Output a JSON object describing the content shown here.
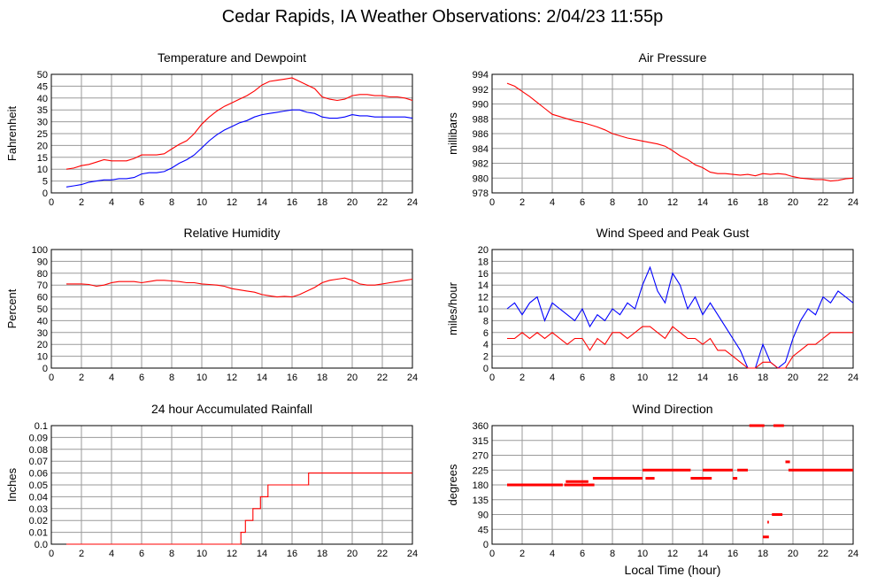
{
  "page": {
    "title": "Cedar Rapids, IA Weather Observations: 2/04/23 11:55p"
  },
  "colors": {
    "red": "#ff0000",
    "blue": "#0000ff",
    "grid": "#9a9a9a",
    "axis": "#000000"
  },
  "chart_data": [
    {
      "id": "temp",
      "type": "line",
      "title": "Temperature and Dewpoint",
      "ylabel": "Fahrenheit",
      "xlabel": "",
      "xlim": [
        0,
        24
      ],
      "ylim": [
        0,
        50
      ],
      "xticks": [
        2,
        4,
        6,
        8,
        10,
        12,
        14,
        16,
        18,
        20,
        22,
        24
      ],
      "yticks": [
        0,
        5,
        10,
        15,
        20,
        25,
        30,
        35,
        40,
        45,
        50
      ],
      "ytick_labels": [
        "0",
        "5",
        "10",
        "15",
        "20",
        "25",
        "30",
        "35",
        "40",
        "45",
        "50"
      ],
      "grid": true,
      "series": [
        {
          "color": "#ff0000",
          "x": [
            1,
            1.5,
            2,
            2.5,
            3,
            3.5,
            4,
            4.5,
            5,
            5.5,
            6,
            6.5,
            7,
            7.5,
            8,
            8.5,
            9,
            9.5,
            10,
            10.5,
            11,
            11.5,
            12,
            12.5,
            13,
            13.5,
            14,
            14.5,
            15,
            15.5,
            16,
            16.5,
            17,
            17.5,
            18,
            18.5,
            19,
            19.5,
            20,
            20.5,
            21,
            21.5,
            22,
            22.5,
            23,
            23.5,
            24
          ],
          "y": [
            10,
            10.5,
            11.5,
            12,
            13,
            14,
            13.5,
            13.5,
            13.5,
            14.5,
            16,
            16,
            16,
            16.5,
            18.5,
            20.5,
            22,
            25,
            29,
            32,
            34.5,
            36.5,
            38,
            39.5,
            41,
            43,
            45.5,
            47,
            47.5,
            48,
            48.5,
            47,
            45.5,
            44,
            40.5,
            39.5,
            39,
            39.5,
            41,
            41.5,
            41.5,
            41,
            41,
            40.5,
            40.5,
            40,
            39
          ]
        },
        {
          "color": "#0000ff",
          "x": [
            1,
            1.5,
            2,
            2.5,
            3,
            3.5,
            4,
            4.5,
            5,
            5.5,
            6,
            6.5,
            7,
            7.5,
            8,
            8.5,
            9,
            9.5,
            10,
            10.5,
            11,
            11.5,
            12,
            12.5,
            13,
            13.5,
            14,
            14.5,
            15,
            15.5,
            16,
            16.5,
            17,
            17.5,
            18,
            18.5,
            19,
            19.5,
            20,
            20.5,
            21,
            21.5,
            22,
            22.5,
            23,
            23.5,
            24
          ],
          "y": [
            2.5,
            3,
            3.5,
            4.5,
            5,
            5.5,
            5.5,
            6,
            6,
            6.5,
            8,
            8.5,
            8.5,
            9,
            10.5,
            12.5,
            14,
            16,
            19,
            22,
            24.5,
            26.5,
            28,
            29.5,
            30.5,
            32,
            33,
            33.5,
            34,
            34.5,
            35,
            35,
            34,
            33.5,
            32,
            31.5,
            31.5,
            32,
            33,
            32.5,
            32.5,
            32,
            32,
            32,
            32,
            32,
            31.5
          ]
        }
      ]
    },
    {
      "id": "pressure",
      "type": "line",
      "title": "Air Pressure",
      "ylabel": "millibars",
      "xlabel": "",
      "xlim": [
        0,
        24
      ],
      "ylim": [
        978,
        994
      ],
      "xticks": [
        2,
        4,
        6,
        8,
        10,
        12,
        14,
        16,
        18,
        20,
        22,
        24
      ],
      "yticks": [
        978,
        980,
        982,
        984,
        986,
        988,
        990,
        992,
        994
      ],
      "ytick_labels": [
        "978",
        "980",
        "982",
        "984",
        "986",
        "988",
        "990",
        "992",
        "994"
      ],
      "grid": true,
      "series": [
        {
          "color": "#ff0000",
          "x": [
            1,
            1.5,
            2,
            2.5,
            3,
            3.5,
            4,
            4.5,
            5,
            5.5,
            6,
            6.5,
            7,
            7.5,
            8,
            8.5,
            9,
            9.5,
            10,
            10.5,
            11,
            11.5,
            12,
            12.5,
            13,
            13.5,
            14,
            14.5,
            15,
            15.5,
            16,
            16.5,
            17,
            17.5,
            18,
            18.5,
            19,
            19.5,
            20,
            20.5,
            21,
            21.5,
            22,
            22.5,
            23,
            23.5,
            24
          ],
          "y": [
            992.8,
            992.4,
            991.7,
            991,
            990.2,
            989.4,
            988.6,
            988.3,
            988,
            987.7,
            987.5,
            987.2,
            986.9,
            986.5,
            986,
            985.7,
            985.4,
            985.2,
            985,
            984.8,
            984.6,
            984.3,
            983.7,
            983,
            982.5,
            981.8,
            981.4,
            980.8,
            980.6,
            980.6,
            980.5,
            980.4,
            980.5,
            980.3,
            980.6,
            980.5,
            980.6,
            980.5,
            980.2,
            980,
            979.9,
            979.8,
            979.8,
            979.6,
            979.7,
            979.9,
            980
          ]
        }
      ]
    },
    {
      "id": "rh",
      "type": "line",
      "title": "Relative Humidity",
      "ylabel": "Percent",
      "xlabel": "",
      "xlim": [
        0,
        24
      ],
      "ylim": [
        0,
        100
      ],
      "xticks": [
        2,
        4,
        6,
        8,
        10,
        12,
        14,
        16,
        18,
        20,
        22,
        24
      ],
      "yticks": [
        0,
        10,
        20,
        30,
        40,
        50,
        60,
        70,
        80,
        90,
        100
      ],
      "ytick_labels": [
        "0",
        "10",
        "20",
        "30",
        "40",
        "50",
        "60",
        "70",
        "80",
        "90",
        "100"
      ],
      "grid": true,
      "series": [
        {
          "color": "#ff0000",
          "x": [
            1,
            1.5,
            2,
            2.5,
            3,
            3.5,
            4,
            4.5,
            5,
            5.5,
            6,
            6.5,
            7,
            7.5,
            8,
            8.5,
            9,
            9.5,
            10,
            10.5,
            11,
            11.5,
            12,
            12.5,
            13,
            13.5,
            14,
            14.5,
            15,
            15.5,
            16,
            16.5,
            17,
            17.5,
            18,
            18.5,
            19,
            19.5,
            20,
            20.5,
            21,
            21.5,
            22,
            22.5,
            23,
            23.5,
            24
          ],
          "y": [
            71,
            71,
            71,
            70.5,
            69,
            70,
            72,
            73,
            73,
            73,
            72,
            73,
            74,
            74,
            73.5,
            73,
            72,
            72,
            71,
            70.5,
            70,
            69,
            67,
            66,
            65,
            64,
            62,
            61,
            60,
            60.5,
            60,
            62,
            65,
            68,
            72,
            74,
            75,
            76,
            74,
            71,
            70,
            70,
            71,
            72,
            73,
            74,
            75
          ]
        }
      ]
    },
    {
      "id": "wind",
      "type": "line",
      "title": "Wind Speed and Peak Gust",
      "ylabel": "miles/hour",
      "xlabel": "",
      "xlim": [
        0,
        24
      ],
      "ylim": [
        0,
        20
      ],
      "xticks": [
        2,
        4,
        6,
        8,
        10,
        12,
        14,
        16,
        18,
        20,
        22,
        24
      ],
      "yticks": [
        0,
        2,
        4,
        6,
        8,
        10,
        12,
        14,
        16,
        18,
        20
      ],
      "ytick_labels": [
        "0",
        "2",
        "4",
        "6",
        "8",
        "10",
        "12",
        "14",
        "16",
        "18",
        "20"
      ],
      "grid": true,
      "series": [
        {
          "color": "#0000ff",
          "x": [
            1,
            1.5,
            2,
            2.5,
            3,
            3.5,
            4,
            4.5,
            5,
            5.5,
            6,
            6.5,
            7,
            7.5,
            8,
            8.5,
            9,
            9.5,
            10,
            10.5,
            11,
            11.5,
            12,
            12.5,
            13,
            13.5,
            14,
            14.5,
            15,
            15.5,
            16,
            16.5,
            17,
            17.5,
            18,
            18.5,
            19,
            19.5,
            20,
            20.5,
            21,
            21.5,
            22,
            22.5,
            23,
            23.5,
            24
          ],
          "y": [
            10,
            11,
            9,
            11,
            12,
            8,
            11,
            10,
            9,
            8,
            10,
            7,
            9,
            8,
            10,
            9,
            11,
            10,
            14,
            17,
            13,
            11,
            16,
            14,
            10,
            12,
            9,
            11,
            9,
            7,
            5,
            3,
            0,
            0,
            4,
            1,
            0,
            1,
            5,
            8,
            10,
            9,
            12,
            11,
            13,
            12,
            11
          ]
        },
        {
          "color": "#ff0000",
          "x": [
            1,
            1.5,
            2,
            2.5,
            3,
            3.5,
            4,
            4.5,
            5,
            5.5,
            6,
            6.5,
            7,
            7.5,
            8,
            8.5,
            9,
            9.5,
            10,
            10.5,
            11,
            11.5,
            12,
            12.5,
            13,
            13.5,
            14,
            14.5,
            15,
            15.5,
            16,
            16.5,
            17,
            17.5,
            18,
            18.5,
            19,
            19.5,
            20,
            20.5,
            21,
            21.5,
            22,
            22.5,
            23,
            23.5,
            24
          ],
          "y": [
            5,
            5,
            6,
            5,
            6,
            5,
            6,
            5,
            4,
            5,
            5,
            3,
            5,
            4,
            6,
            6,
            5,
            6,
            7,
            7,
            6,
            5,
            7,
            6,
            5,
            5,
            4,
            5,
            3,
            3,
            2,
            1,
            0,
            0,
            1,
            1,
            0,
            0,
            2,
            3,
            4,
            4,
            5,
            6,
            6,
            6,
            6
          ]
        }
      ]
    },
    {
      "id": "rain",
      "type": "line",
      "title": "24 hour Accumulated Rainfall",
      "ylabel": "Inches",
      "xlabel": "",
      "xlim": [
        0,
        24
      ],
      "ylim": [
        0,
        0.1
      ],
      "xticks": [
        2,
        4,
        6,
        8,
        10,
        12,
        14,
        16,
        18,
        20,
        22,
        24
      ],
      "yticks": [
        0,
        0.01,
        0.02,
        0.03,
        0.04,
        0.05,
        0.06,
        0.07,
        0.08,
        0.09,
        0.1
      ],
      "ytick_labels": [
        "0.0",
        "0.01",
        "0.02",
        "0.03",
        "0.04",
        "0.05",
        "0.06",
        "0.07",
        "0.08",
        "0.09",
        "0.1"
      ],
      "grid": true,
      "series": [
        {
          "color": "#ff0000",
          "x": [
            1,
            12.6,
            12.6,
            12.9,
            12.9,
            13.4,
            13.4,
            13.9,
            13.9,
            14.4,
            14.4,
            15.2,
            15.2,
            17.1,
            17.1,
            24
          ],
          "y": [
            0,
            0,
            0.01,
            0.01,
            0.02,
            0.02,
            0.03,
            0.03,
            0.04,
            0.04,
            0.05,
            0.05,
            0.05,
            0.05,
            0.06,
            0.06
          ]
        }
      ]
    },
    {
      "id": "winddir",
      "type": "scatter",
      "title": "Wind Direction",
      "ylabel": "degrees",
      "xlabel": "Local Time (hour)",
      "xlim": [
        0,
        24
      ],
      "ylim": [
        0,
        360
      ],
      "xticks": [
        2,
        4,
        6,
        8,
        10,
        12,
        14,
        16,
        18,
        20,
        22,
        24
      ],
      "yticks": [
        0,
        45,
        90,
        135,
        180,
        225,
        270,
        315,
        360
      ],
      "ytick_labels": [
        "0",
        "45",
        "90",
        "135",
        "180",
        "225",
        "270",
        "315",
        "360"
      ],
      "grid": true,
      "segments": [
        {
          "x0": 1,
          "x1": 4.7,
          "y": 180
        },
        {
          "x0": 4.8,
          "x1": 6.8,
          "y": 180
        },
        {
          "x0": 4.9,
          "x1": 6.4,
          "y": 190
        },
        {
          "x0": 6.7,
          "x1": 10,
          "y": 200
        },
        {
          "x0": 10.2,
          "x1": 10.8,
          "y": 200
        },
        {
          "x0": 10,
          "x1": 13.2,
          "y": 225
        },
        {
          "x0": 13.2,
          "x1": 14.6,
          "y": 200
        },
        {
          "x0": 14,
          "x1": 16,
          "y": 225
        },
        {
          "x0": 16,
          "x1": 16.3,
          "y": 200
        },
        {
          "x0": 16.3,
          "x1": 17,
          "y": 225
        },
        {
          "x0": 17.1,
          "x1": 18.1,
          "y": 360
        },
        {
          "x0": 18.7,
          "x1": 19.4,
          "y": 360
        },
        {
          "x0": 18,
          "x1": 18.4,
          "y": 22
        },
        {
          "x0": 18.3,
          "x1": 18.4,
          "y": 67
        },
        {
          "x0": 18.6,
          "x1": 19.3,
          "y": 90
        },
        {
          "x0": 19.5,
          "x1": 19.8,
          "y": 250
        },
        {
          "x0": 19.7,
          "x1": 24,
          "y": 225
        }
      ],
      "series": [
        {
          "color": "#ff0000"
        }
      ]
    }
  ]
}
